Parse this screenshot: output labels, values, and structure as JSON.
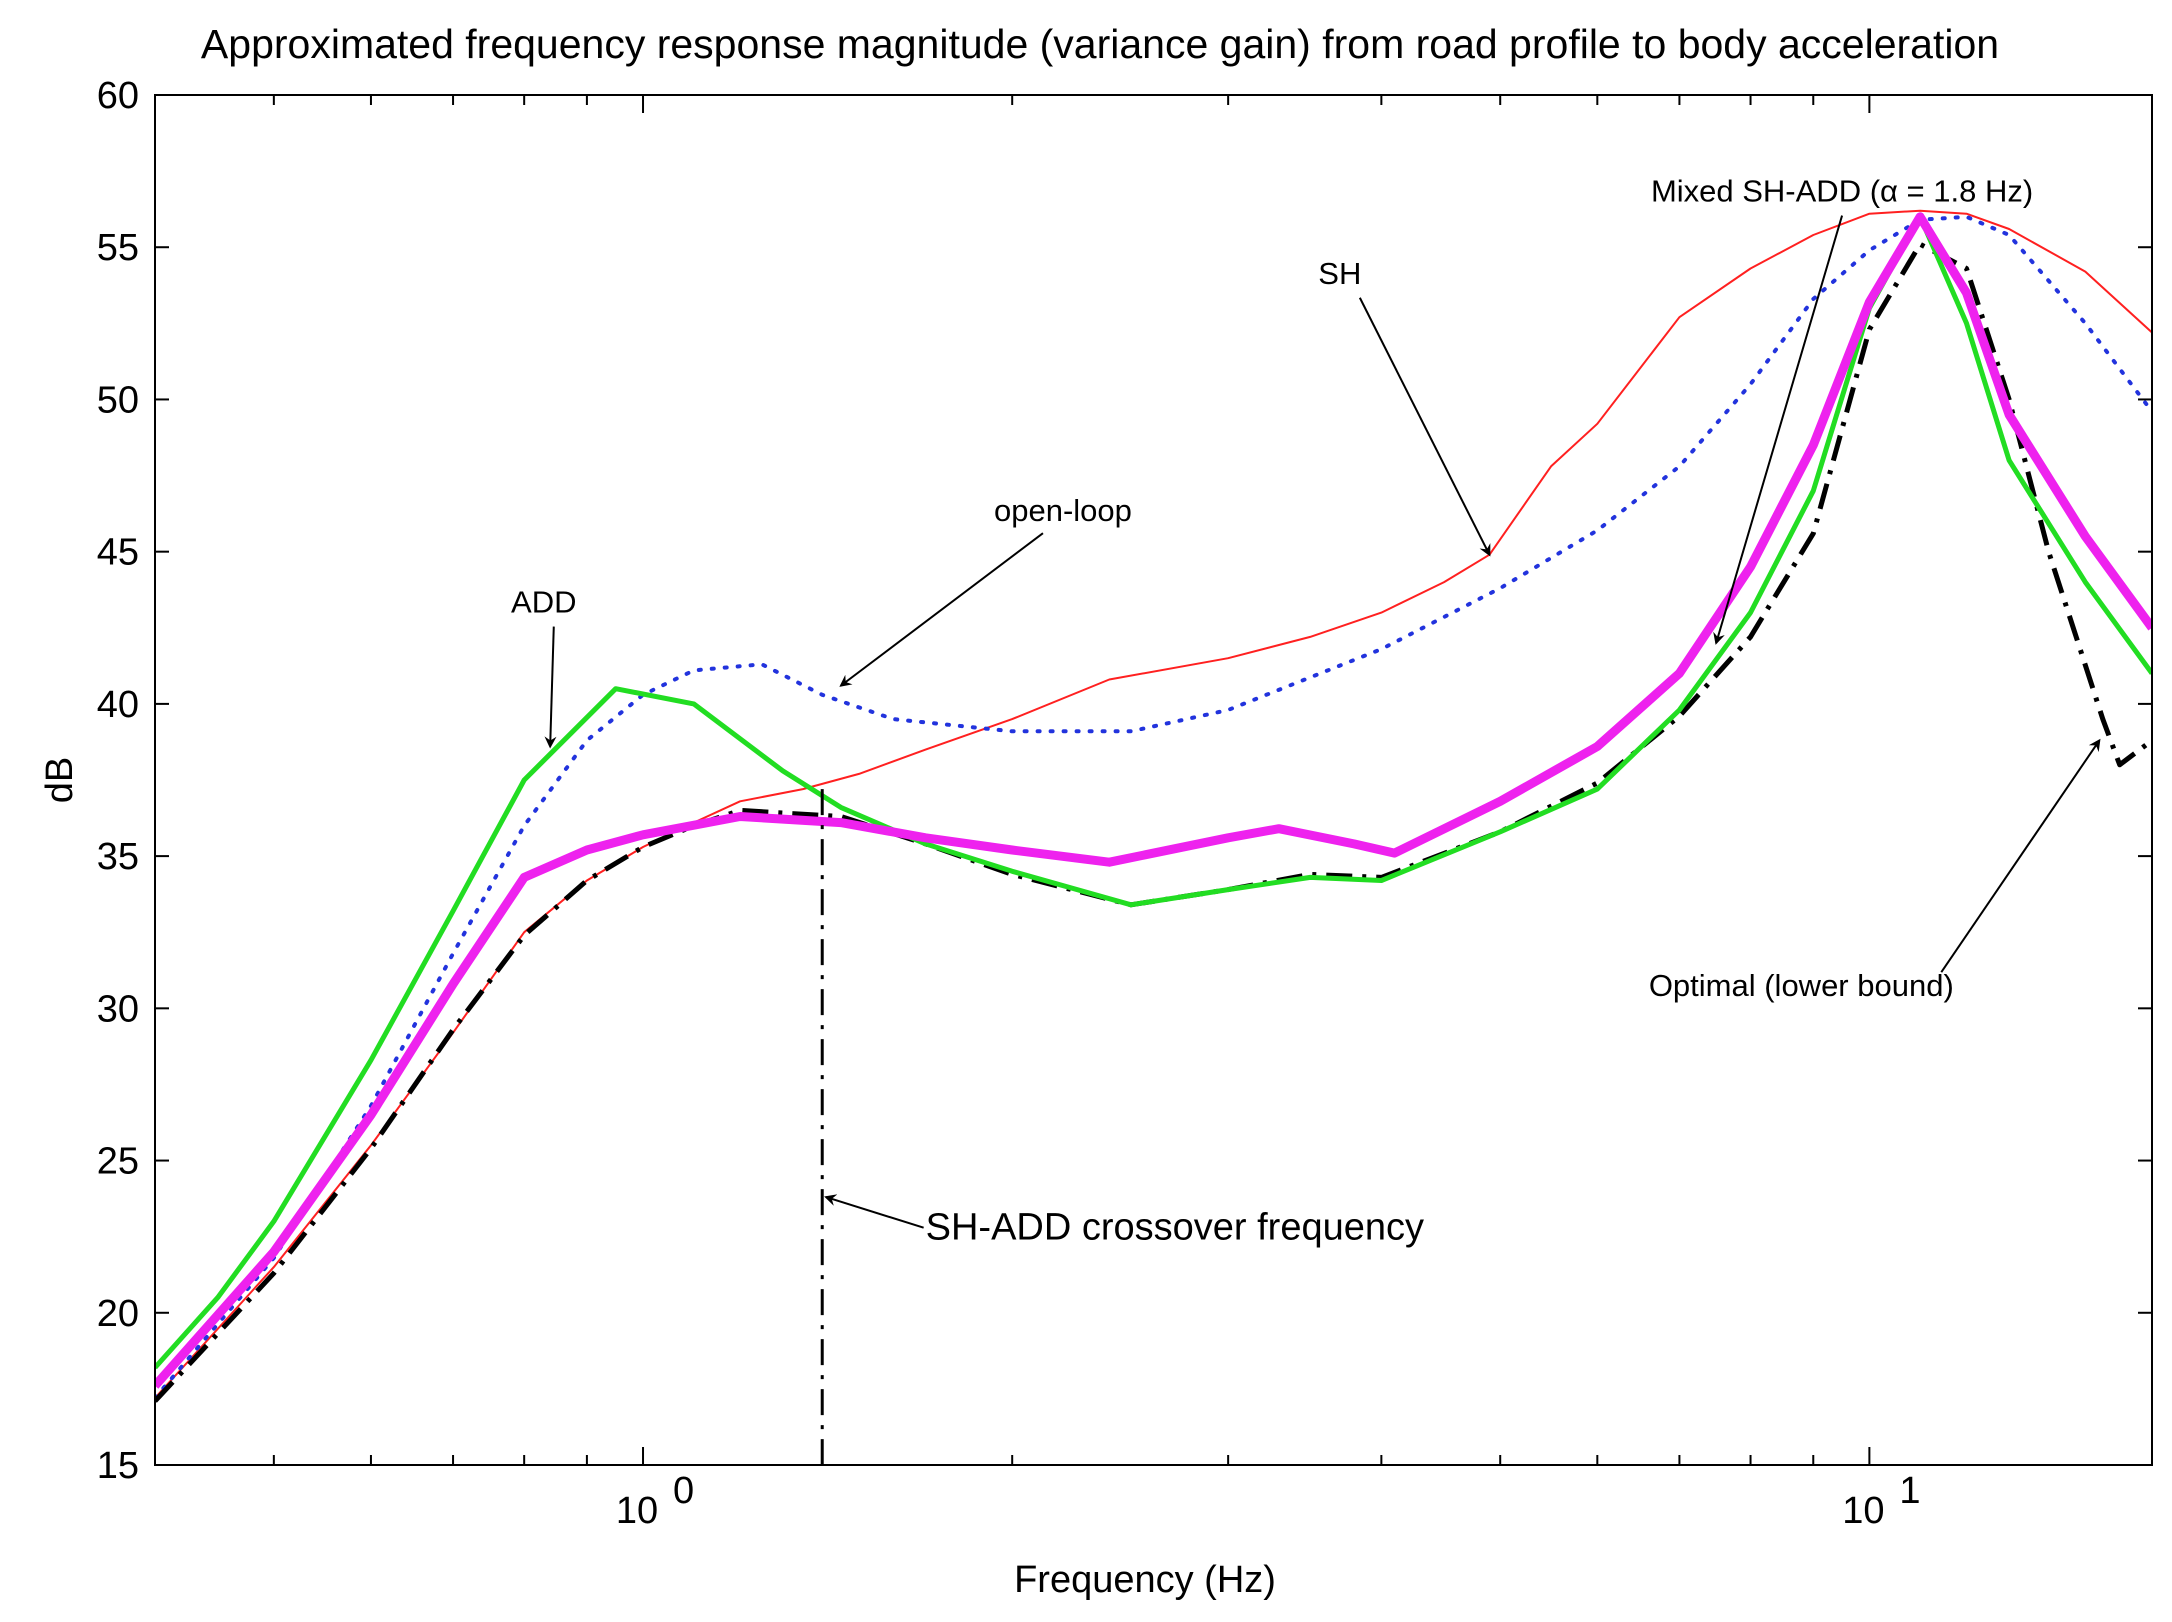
{
  "chart_data": {
    "type": "line",
    "title": "Approximated frequency response magnitude (variance gain) from road profile to body acceleration",
    "xlabel": "Frequency (Hz)",
    "ylabel": "dB",
    "xscale": "log",
    "xlim": [
      0.4,
      17
    ],
    "ylim": [
      15,
      60
    ],
    "yticks": [
      15,
      20,
      25,
      30,
      35,
      40,
      45,
      50,
      55,
      60
    ],
    "xticks_major": [
      {
        "value": 1,
        "base": "10",
        "exp": "0"
      },
      {
        "value": 10,
        "base": "10",
        "exp": "1"
      }
    ],
    "xticks_minor": [
      0.5,
      0.6,
      0.7,
      0.8,
      0.9,
      2,
      3,
      4,
      5,
      6,
      7,
      8,
      9
    ],
    "grid": false,
    "legend": "none",
    "series": [
      {
        "name": "SH",
        "color": "#ff2020",
        "style": "solid",
        "width": 2,
        "points": [
          [
            0.4,
            17.2
          ],
          [
            0.5,
            21.5
          ],
          [
            0.6,
            25.5
          ],
          [
            0.7,
            29.2
          ],
          [
            0.8,
            32.5
          ],
          [
            0.9,
            34.2
          ],
          [
            1.0,
            35.3
          ],
          [
            1.1,
            36.1
          ],
          [
            1.2,
            36.8
          ],
          [
            1.35,
            37.2
          ],
          [
            1.5,
            37.7
          ],
          [
            1.7,
            38.5
          ],
          [
            2.0,
            39.5
          ],
          [
            2.4,
            40.8
          ],
          [
            3.0,
            41.5
          ],
          [
            3.5,
            42.2
          ],
          [
            4.0,
            43.0
          ],
          [
            4.5,
            44.0
          ],
          [
            4.9,
            44.9
          ],
          [
            5.5,
            47.8
          ],
          [
            6.0,
            49.2
          ],
          [
            7.0,
            52.7
          ],
          [
            8.0,
            54.3
          ],
          [
            9.0,
            55.4
          ],
          [
            10.0,
            56.1
          ],
          [
            11.0,
            56.2
          ],
          [
            12.0,
            56.1
          ],
          [
            13.0,
            55.6
          ],
          [
            15.0,
            54.2
          ],
          [
            17.0,
            52.2
          ]
        ]
      },
      {
        "name": "open-loop",
        "color": "#2233dd",
        "style": "dotted",
        "width": 4,
        "points": [
          [
            0.4,
            17.2
          ],
          [
            0.5,
            21.8
          ],
          [
            0.6,
            26.8
          ],
          [
            0.7,
            31.8
          ],
          [
            0.8,
            36.0
          ],
          [
            0.9,
            38.8
          ],
          [
            1.0,
            40.3
          ],
          [
            1.1,
            41.1
          ],
          [
            1.25,
            41.3
          ],
          [
            1.4,
            40.3
          ],
          [
            1.6,
            39.5
          ],
          [
            2.0,
            39.1
          ],
          [
            2.5,
            39.1
          ],
          [
            3.0,
            39.8
          ],
          [
            4.0,
            41.8
          ],
          [
            5.0,
            43.8
          ],
          [
            6.0,
            45.7
          ],
          [
            7.0,
            47.8
          ],
          [
            8.0,
            50.5
          ],
          [
            9.0,
            53.3
          ],
          [
            10.0,
            54.9
          ],
          [
            11.0,
            55.9
          ],
          [
            12.0,
            56.0
          ],
          [
            13.0,
            55.4
          ],
          [
            15.0,
            52.5
          ],
          [
            17.0,
            49.6
          ]
        ]
      },
      {
        "name": "ADD",
        "color": "#22dd22",
        "style": "solid",
        "width": 5,
        "points": [
          [
            0.4,
            18.2
          ],
          [
            0.45,
            20.5
          ],
          [
            0.5,
            23.0
          ],
          [
            0.6,
            28.3
          ],
          [
            0.7,
            33.2
          ],
          [
            0.8,
            37.5
          ],
          [
            0.95,
            40.5
          ],
          [
            1.1,
            40.0
          ],
          [
            1.3,
            37.8
          ],
          [
            1.45,
            36.6
          ],
          [
            1.7,
            35.4
          ],
          [
            2.0,
            34.5
          ],
          [
            2.5,
            33.4
          ],
          [
            3.0,
            33.9
          ],
          [
            3.5,
            34.3
          ],
          [
            4.0,
            34.2
          ],
          [
            5.0,
            35.8
          ],
          [
            6.0,
            37.2
          ],
          [
            7.0,
            39.8
          ],
          [
            8.0,
            43.0
          ],
          [
            9.0,
            47.0
          ],
          [
            10.0,
            53.0
          ],
          [
            11.0,
            56.0
          ],
          [
            12.0,
            52.5
          ],
          [
            13.0,
            48.0
          ],
          [
            15.0,
            44.0
          ],
          [
            17.0,
            41.0
          ]
        ]
      },
      {
        "name": "Mixed SH-ADD (α = 1.8 Hz)",
        "color": "#ee22ee",
        "style": "solid",
        "width": 9,
        "points": [
          [
            0.4,
            17.6
          ],
          [
            0.5,
            22.0
          ],
          [
            0.6,
            26.5
          ],
          [
            0.7,
            30.8
          ],
          [
            0.8,
            34.3
          ],
          [
            0.9,
            35.2
          ],
          [
            1.0,
            35.7
          ],
          [
            1.2,
            36.3
          ],
          [
            1.45,
            36.1
          ],
          [
            1.7,
            35.6
          ],
          [
            2.0,
            35.2
          ],
          [
            2.4,
            34.8
          ],
          [
            3.0,
            35.6
          ],
          [
            3.3,
            35.9
          ],
          [
            3.8,
            35.4
          ],
          [
            4.1,
            35.1
          ],
          [
            5.0,
            36.8
          ],
          [
            6.0,
            38.6
          ],
          [
            7.0,
            41.0
          ],
          [
            8.0,
            44.5
          ],
          [
            9.0,
            48.5
          ],
          [
            10.0,
            53.2
          ],
          [
            11.0,
            56.0
          ],
          [
            12.0,
            53.5
          ],
          [
            13.0,
            49.5
          ],
          [
            15.0,
            45.5
          ],
          [
            17.0,
            42.5
          ]
        ]
      },
      {
        "name": "Optimal (lower bound)",
        "color": "#000000",
        "style": "dashdot",
        "width": 5,
        "points": [
          [
            0.4,
            17.1
          ],
          [
            0.5,
            21.3
          ],
          [
            0.6,
            25.4
          ],
          [
            0.7,
            29.3
          ],
          [
            0.8,
            32.4
          ],
          [
            0.9,
            34.2
          ],
          [
            1.0,
            35.3
          ],
          [
            1.1,
            36.0
          ],
          [
            1.2,
            36.5
          ],
          [
            1.45,
            36.3
          ],
          [
            1.7,
            35.4
          ],
          [
            2.0,
            34.4
          ],
          [
            2.5,
            33.4
          ],
          [
            3.0,
            33.9
          ],
          [
            3.5,
            34.4
          ],
          [
            4.0,
            34.3
          ],
          [
            5.0,
            35.8
          ],
          [
            6.0,
            37.4
          ],
          [
            7.0,
            39.6
          ],
          [
            8.0,
            42.2
          ],
          [
            9.0,
            45.6
          ],
          [
            10.0,
            52.3
          ],
          [
            11.0,
            55.1
          ],
          [
            12.0,
            54.3
          ],
          [
            13.0,
            50.0
          ],
          [
            14.0,
            45.0
          ],
          [
            15.5,
            39.5
          ],
          [
            16.0,
            38.0
          ],
          [
            17.0,
            38.8
          ]
        ]
      }
    ],
    "crossover_line": {
      "x": 1.4,
      "y_from": 15,
      "y_to": 37.2,
      "color": "#000000",
      "style": "dashdot"
    },
    "annotations": [
      {
        "text": "Mixed SH-ADD (α = 1.8 Hz)",
        "at": [
          9.5,
          56.5
        ],
        "arrow_to": [
          7.5,
          42.0
        ],
        "size": "small"
      },
      {
        "text": "SH",
        "at": [
          3.7,
          53.8
        ],
        "arrow_to": [
          4.9,
          44.9
        ],
        "size": "small"
      },
      {
        "text": "open-loop",
        "at": [
          2.2,
          46.0
        ],
        "arrow_to": [
          1.45,
          40.6
        ],
        "size": "small"
      },
      {
        "text": "ADD",
        "at": [
          0.83,
          43.0
        ],
        "arrow_to": [
          0.84,
          38.6
        ],
        "size": "small"
      },
      {
        "text": "Optimal (lower bound)",
        "at": [
          8.8,
          30.4
        ],
        "arrow_to": [
          15.4,
          38.8
        ],
        "size": "small"
      },
      {
        "text": "SH-ADD crossover frequency",
        "at": [
          1.7,
          22.4
        ],
        "arrow_to": [
          1.41,
          23.8
        ],
        "size": "big"
      }
    ]
  }
}
